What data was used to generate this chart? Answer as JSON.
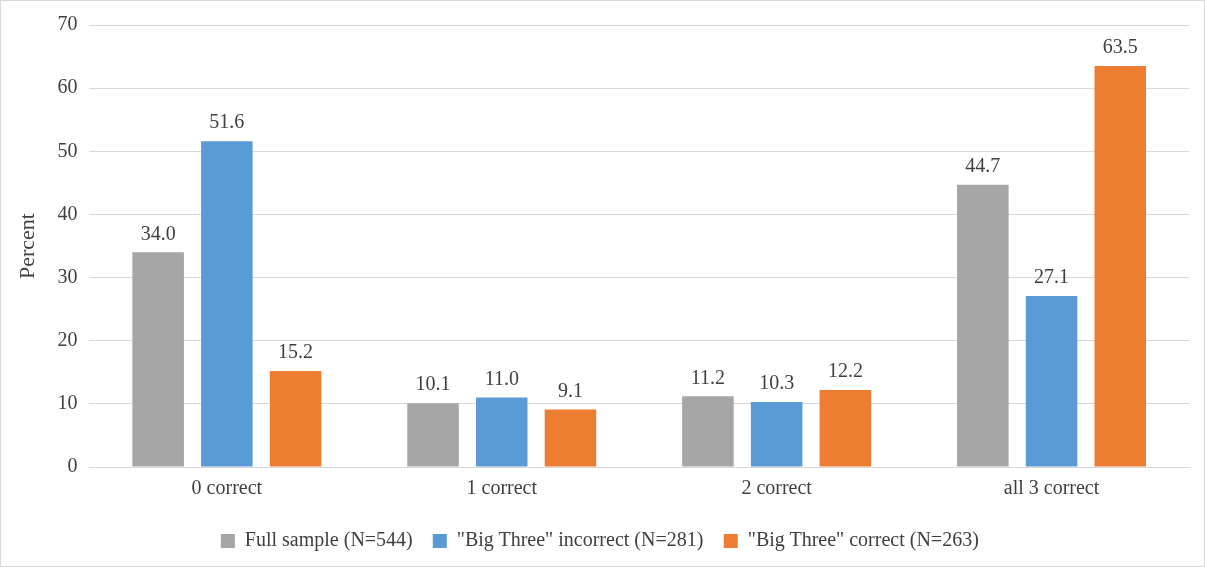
{
  "chart_data": {
    "type": "bar",
    "ylabel": "Percent",
    "categories": [
      "0 correct",
      "1 correct",
      "2 correct",
      "all 3 correct"
    ],
    "series": [
      {
        "name": "Full sample (N=544)",
        "color": "#a6a6a6",
        "values": [
          34.0,
          10.1,
          11.2,
          44.7
        ],
        "value_labels": [
          "34.0",
          "10.1",
          "11.2",
          "44.7"
        ]
      },
      {
        "name": "\"Big Three\" incorrect (N=281)",
        "color": "#5b9bd5",
        "values": [
          51.6,
          11.0,
          10.3,
          27.1
        ],
        "value_labels": [
          "51.6",
          "11.0",
          "10.3",
          "27.1"
        ]
      },
      {
        "name": "\"Big Three\" correct (N=263)",
        "color": "#ed7d31",
        "values": [
          15.2,
          9.1,
          12.2,
          63.5
        ],
        "value_labels": [
          "15.2",
          "9.1",
          "12.2",
          "63.5"
        ]
      }
    ],
    "ylim": [
      0,
      70
    ],
    "yticks": [
      0,
      10,
      20,
      30,
      40,
      50,
      60,
      70
    ],
    "grid": "y",
    "legend": "bottom"
  }
}
